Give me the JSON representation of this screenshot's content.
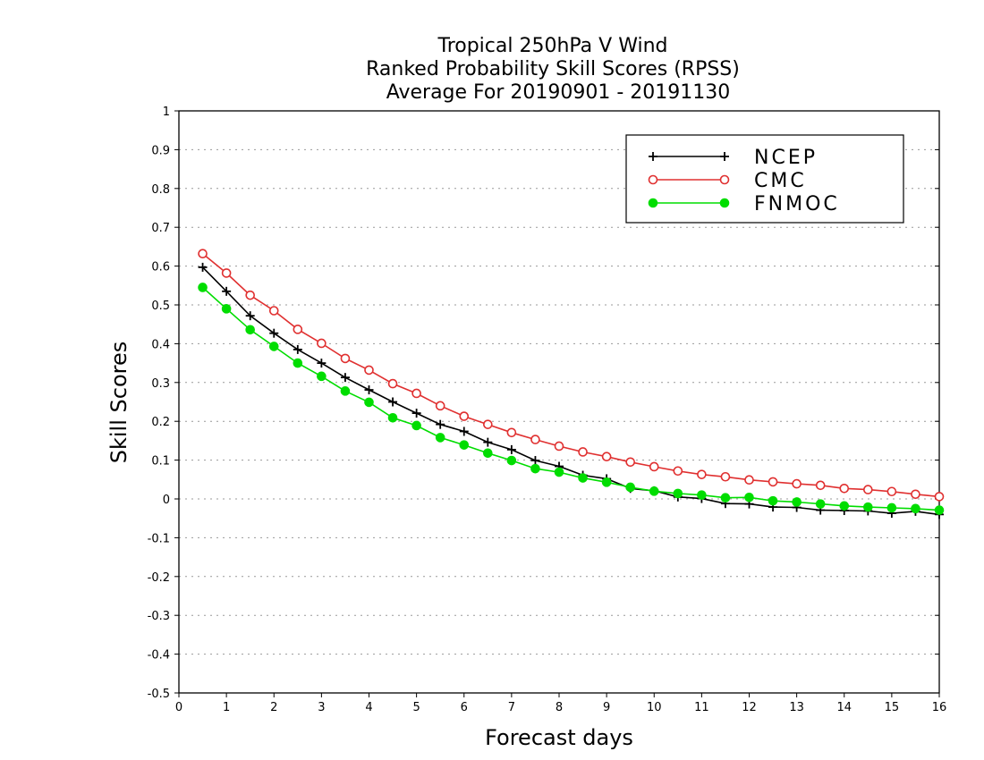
{
  "chart_data": {
    "type": "line",
    "title": [
      "Tropical 250hPa V Wind",
      "Ranked Probability Skill Scores (RPSS)",
      "Average For 20190901 - 20191130"
    ],
    "xlabel": "Forecast days",
    "ylabel": "Skill Scores",
    "xlim": [
      0,
      16
    ],
    "ylim": [
      -0.5,
      1
    ],
    "xticks": [
      0,
      1,
      2,
      3,
      4,
      5,
      6,
      7,
      8,
      9,
      10,
      11,
      12,
      13,
      14,
      15,
      16
    ],
    "xtick_labels": [
      "0",
      "1",
      "2",
      "3",
      "4",
      "5",
      "6",
      "7",
      "8",
      "9",
      "10",
      "11",
      "12",
      "13",
      "14",
      "15",
      "16"
    ],
    "yticks": [
      -0.5,
      -0.4,
      -0.3,
      -0.2,
      -0.1,
      0,
      0.1,
      0.2,
      0.3,
      0.4,
      0.5,
      0.6,
      0.7,
      0.8,
      0.9,
      1
    ],
    "ytick_labels": [
      "-0.5",
      "-0.4",
      "-0.3",
      "-0.2",
      "-0.1",
      "0",
      "0.1",
      "0.2",
      "0.3",
      "0.4",
      "0.5",
      "0.6",
      "0.7",
      "0.8",
      "0.9",
      "1"
    ],
    "grid": "horizontal dotted",
    "legend_position": "top-right",
    "x": [
      0.5,
      1,
      1.5,
      2,
      2.5,
      3,
      3.5,
      4,
      4.5,
      5,
      5.5,
      6,
      6.5,
      7,
      7.5,
      8,
      8.5,
      9,
      9.5,
      10,
      10.5,
      11,
      11.5,
      12,
      12.5,
      13,
      13.5,
      14,
      14.5,
      15,
      15.5,
      16
    ],
    "series": [
      {
        "name": "NCEP",
        "color": "#000000",
        "marker": "plus",
        "values": [
          0.597,
          0.535,
          0.472,
          0.427,
          0.385,
          0.35,
          0.313,
          0.281,
          0.25,
          0.221,
          0.192,
          0.174,
          0.146,
          0.127,
          0.099,
          0.084,
          0.061,
          0.052,
          0.027,
          0.021,
          0.005,
          0.001,
          -0.012,
          -0.013,
          -0.021,
          -0.022,
          -0.029,
          -0.03,
          -0.031,
          -0.037,
          -0.032,
          -0.04
        ]
      },
      {
        "name": "CMC",
        "color": "#e03030",
        "marker": "open-circle",
        "values": [
          0.632,
          0.582,
          0.525,
          0.485,
          0.437,
          0.401,
          0.362,
          0.332,
          0.297,
          0.272,
          0.24,
          0.213,
          0.192,
          0.171,
          0.153,
          0.136,
          0.121,
          0.109,
          0.095,
          0.083,
          0.072,
          0.063,
          0.057,
          0.049,
          0.044,
          0.039,
          0.035,
          0.027,
          0.024,
          0.019,
          0.012,
          0.006
        ]
      },
      {
        "name": "FNMOC",
        "color": "#00dd00",
        "marker": "filled-circle",
        "values": [
          0.545,
          0.49,
          0.436,
          0.393,
          0.35,
          0.316,
          0.278,
          0.249,
          0.209,
          0.189,
          0.158,
          0.139,
          0.118,
          0.099,
          0.078,
          0.069,
          0.054,
          0.043,
          0.03,
          0.02,
          0.014,
          0.01,
          0.003,
          0.004,
          -0.005,
          -0.008,
          -0.013,
          -0.018,
          -0.021,
          -0.023,
          -0.025,
          -0.029
        ]
      }
    ]
  }
}
